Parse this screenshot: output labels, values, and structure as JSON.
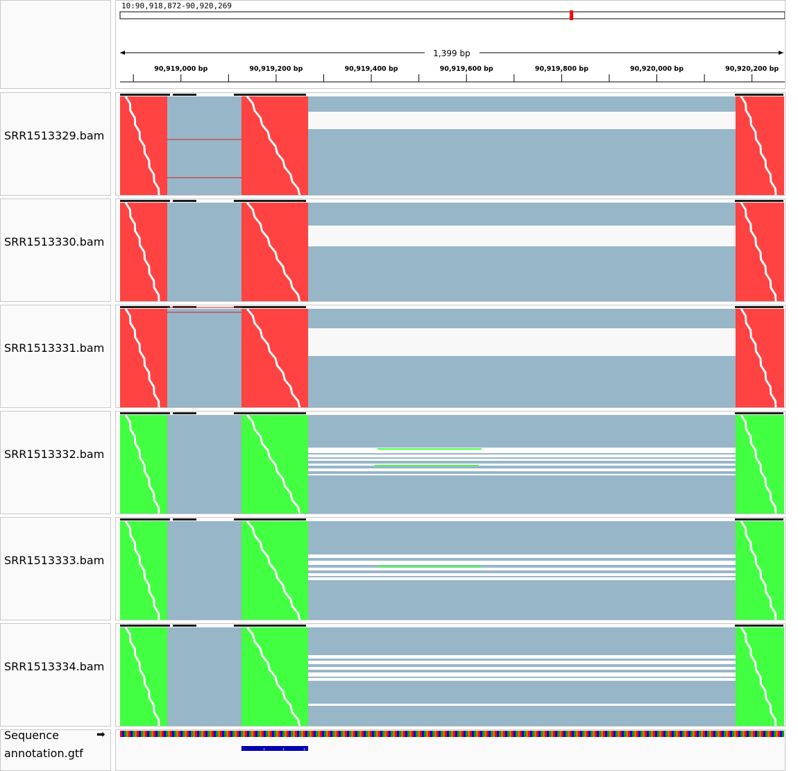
{
  "locus": "10:90,918,872-90,920,269",
  "span_label": "1,399 bp",
  "ruler": {
    "start": 90918872,
    "end": 90920269,
    "ticks": [
      {
        "bp": 90919000,
        "label": "90,919,000 bp"
      },
      {
        "bp": 90919200,
        "label": "90,919,200 bp"
      },
      {
        "bp": 90919400,
        "label": "90,919,400 bp"
      },
      {
        "bp": 90919600,
        "label": "90,919,600 bp"
      },
      {
        "bp": 90919800,
        "label": "90,919,800 bp"
      },
      {
        "bp": 90920000,
        "label": "90,920,000 bp"
      },
      {
        "bp": 90920200,
        "label": "90,920,200 bp"
      }
    ]
  },
  "tracks": [
    {
      "name": "SRR1513329.bam",
      "color": "#ff4242"
    },
    {
      "name": "SRR1513330.bam",
      "color": "#ff4242"
    },
    {
      "name": "SRR1513331.bam",
      "color": "#ff4242"
    },
    {
      "name": "SRR1513332.bam",
      "color": "#42ff42"
    },
    {
      "name": "SRR1513333.bam",
      "color": "#42ff42"
    },
    {
      "name": "SRR1513334.bam",
      "color": "#42ff42"
    }
  ],
  "sequence_label": "Sequence",
  "annotation_label": "annotation.gtf",
  "colors": {
    "junction": "#97b6c8",
    "panel_bg": "#fafafa",
    "border": "#c8c8c8",
    "gene": "#0000b2",
    "locator": "#ff0000"
  }
}
